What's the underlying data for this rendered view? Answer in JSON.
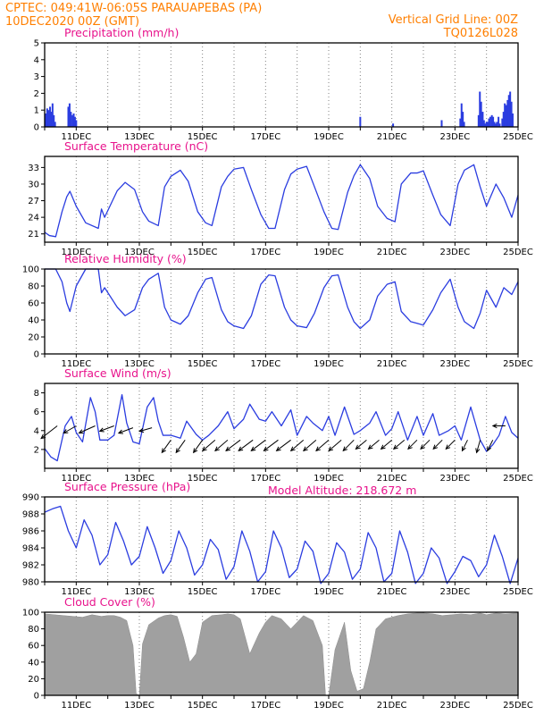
{
  "header": {
    "line1_left": "CPTEC:   049:41W-06:05S   PARAUAPEBAS (PA)",
    "line2_left": "10DEC2020 00Z (GMT)",
    "line1_right": "Vertical Grid Line: 00Z",
    "line2_right": "TQ0126L028"
  },
  "colors": {
    "header": "#ff7f00",
    "panel_title": "#e8138c",
    "series": "#2b3de0",
    "cloud": "#a0a0a0",
    "arrow": "#000000"
  },
  "model_altitude": "Model Altitude: 218.672 m",
  "chart_data": [
    {
      "id": "precipitation",
      "type": "bar",
      "title": "Precipitation (mm/h)",
      "xlabel": "",
      "ylabel": "",
      "ylim": [
        0,
        5
      ],
      "yticks": [
        "0",
        "1",
        "2",
        "3",
        "4",
        "5"
      ],
      "xlim": [
        0,
        15
      ],
      "xticks": [
        "11DEC",
        "13DEC",
        "15DEC",
        "17DEC",
        "19DEC",
        "21DEC",
        "23DEC",
        "25DEC"
      ],
      "xtick_days": [
        1,
        3,
        5,
        7,
        9,
        11,
        13,
        15
      ],
      "grid": "vertical dotted at 00Z",
      "x": [
        0.04,
        0.08,
        0.12,
        0.17,
        0.21,
        0.25,
        0.29,
        0.33,
        0.75,
        0.79,
        0.83,
        0.88,
        0.92,
        0.96,
        1.0,
        10.0,
        11.04,
        12.58,
        13.17,
        13.21,
        13.25,
        13.29,
        13.75,
        13.79,
        13.83,
        13.88,
        13.92,
        13.96,
        14.0,
        14.04,
        14.08,
        14.12,
        14.17,
        14.21,
        14.25,
        14.29,
        14.33,
        14.38,
        14.42,
        14.5,
        14.54,
        14.58,
        14.62,
        14.67,
        14.71,
        14.75,
        14.79,
        14.83
      ],
      "values": [
        0.8,
        1.1,
        1.0,
        1.2,
        0.9,
        1.4,
        0.7,
        0.3,
        1.2,
        1.4,
        0.9,
        0.7,
        0.8,
        0.6,
        0.4,
        0.6,
        0.2,
        0.4,
        0.5,
        1.4,
        0.9,
        0.3,
        0.7,
        2.1,
        1.5,
        0.9,
        0.4,
        0.2,
        0.3,
        0.3,
        0.5,
        0.6,
        0.7,
        0.6,
        0.3,
        0.2,
        0.3,
        0.6,
        0.2,
        0.5,
        0.9,
        1.4,
        1.3,
        1.6,
        1.9,
        2.1,
        1.5,
        0.8
      ]
    },
    {
      "id": "surface_temperature",
      "type": "line",
      "title": "Surface Temperature (nC)",
      "xlabel": "",
      "ylabel": "",
      "ylim": [
        19.5,
        35
      ],
      "yticks": [
        "21",
        "24",
        "27",
        "30",
        "33"
      ],
      "ytick_values": [
        21,
        24,
        27,
        30,
        33
      ],
      "xlim": [
        0,
        15
      ],
      "xticks": [
        "11DEC",
        "13DEC",
        "15DEC",
        "17DEC",
        "19DEC",
        "21DEC",
        "23DEC",
        "25DEC"
      ],
      "xtick_days": [
        1,
        3,
        5,
        7,
        9,
        11,
        13,
        15
      ],
      "grid": "vertical dotted at 00Z",
      "x": [
        0,
        0.15,
        0.35,
        0.55,
        0.7,
        0.8,
        1.0,
        1.3,
        1.7,
        1.8,
        1.9,
        2.3,
        2.55,
        2.85,
        3.1,
        3.3,
        3.6,
        3.8,
        4.0,
        4.3,
        4.55,
        4.85,
        5.1,
        5.3,
        5.6,
        5.8,
        6.0,
        6.3,
        6.55,
        6.85,
        7.1,
        7.3,
        7.6,
        7.8,
        8.0,
        8.3,
        8.55,
        8.85,
        9.1,
        9.3,
        9.6,
        9.8,
        10.0,
        10.3,
        10.55,
        10.85,
        11.1,
        11.3,
        11.6,
        11.8,
        12.0,
        12.3,
        12.55,
        12.85,
        13.1,
        13.3,
        13.6,
        13.8,
        14.0,
        14.3,
        14.55,
        14.8,
        15.0
      ],
      "values": [
        21.3,
        20.7,
        20.5,
        25.0,
        27.7,
        28.7,
        26.0,
        23.0,
        22.0,
        25.5,
        24.0,
        28.8,
        30.3,
        29.0,
        25.0,
        23.3,
        22.5,
        29.5,
        31.4,
        32.5,
        30.5,
        25.0,
        23.0,
        22.5,
        29.5,
        31.4,
        32.7,
        33.0,
        29.0,
        24.5,
        22.0,
        22.0,
        29.0,
        31.8,
        32.7,
        33.2,
        29.5,
        25.0,
        22.0,
        21.8,
        28.5,
        31.5,
        33.5,
        31.0,
        26.0,
        23.8,
        23.2,
        30.0,
        32.0,
        32.0,
        32.4,
        28.0,
        24.5,
        22.5,
        30.0,
        32.5,
        33.5,
        29.5,
        26.0,
        30.0,
        27.5,
        24.0,
        28.0
      ]
    },
    {
      "id": "relative_humidity",
      "type": "line",
      "title": "Relative Humidity (%)",
      "xlabel": "",
      "ylabel": "",
      "ylim": [
        0,
        100
      ],
      "yticks": [
        "0",
        "20",
        "40",
        "60",
        "80",
        "100"
      ],
      "ytick_values": [
        0,
        20,
        40,
        60,
        80,
        100
      ],
      "xlim": [
        0,
        15
      ],
      "xticks": [
        "11DEC",
        "13DEC",
        "15DEC",
        "17DEC",
        "19DEC",
        "21DEC",
        "23DEC",
        "25DEC"
      ],
      "xtick_days": [
        1,
        3,
        5,
        7,
        9,
        11,
        13,
        15
      ],
      "grid": "vertical dotted at 00Z",
      "x": [
        0,
        0.35,
        0.55,
        0.7,
        0.8,
        1.0,
        1.3,
        1.7,
        1.8,
        1.9,
        2.3,
        2.55,
        2.85,
        3.1,
        3.3,
        3.6,
        3.8,
        4.0,
        4.3,
        4.55,
        4.85,
        5.1,
        5.3,
        5.6,
        5.8,
        6.0,
        6.3,
        6.55,
        6.85,
        7.1,
        7.3,
        7.6,
        7.8,
        8.0,
        8.3,
        8.55,
        8.85,
        9.1,
        9.3,
        9.6,
        9.8,
        10.0,
        10.3,
        10.55,
        10.85,
        11.1,
        11.3,
        11.6,
        11.8,
        12.0,
        12.3,
        12.55,
        12.85,
        13.1,
        13.3,
        13.6,
        13.8,
        14.0,
        14.3,
        14.55,
        14.8,
        15.0
      ],
      "values": [
        100,
        100,
        85,
        60,
        50,
        80,
        100,
        100,
        72,
        78,
        55,
        45,
        52,
        78,
        88,
        95,
        55,
        40,
        35,
        45,
        72,
        88,
        90,
        52,
        38,
        33,
        30,
        45,
        82,
        93,
        92,
        55,
        40,
        33,
        31,
        48,
        78,
        92,
        93,
        55,
        38,
        30,
        40,
        68,
        82,
        85,
        50,
        38,
        36,
        34,
        52,
        72,
        88,
        55,
        38,
        30,
        48,
        75,
        55,
        78,
        70,
        85
      ]
    },
    {
      "id": "surface_wind",
      "type": "line",
      "title": "Surface Wind (m/s)",
      "xlabel": "",
      "ylabel": "",
      "ylim": [
        0,
        9
      ],
      "yticks": [
        "2",
        "4",
        "6",
        "8"
      ],
      "ytick_values": [
        2,
        4,
        6,
        8
      ],
      "xlim": [
        0,
        15
      ],
      "xticks": [
        "11DEC",
        "13DEC",
        "15DEC",
        "17DEC",
        "19DEC",
        "21DEC",
        "23DEC",
        "25DEC"
      ],
      "xtick_days": [
        1,
        3,
        5,
        7,
        9,
        11,
        13,
        15
      ],
      "grid": "vertical dotted at 00Z",
      "x": [
        0,
        0.2,
        0.4,
        0.65,
        0.85,
        1.0,
        1.2,
        1.45,
        1.6,
        1.75,
        2.0,
        2.2,
        2.45,
        2.6,
        2.8,
        3.0,
        3.25,
        3.45,
        3.6,
        3.75,
        4.0,
        4.3,
        4.5,
        4.8,
        5.0,
        5.2,
        5.5,
        5.8,
        6.0,
        6.3,
        6.5,
        6.8,
        7.0,
        7.2,
        7.5,
        7.8,
        8.0,
        8.3,
        8.5,
        8.8,
        9.0,
        9.2,
        9.5,
        9.8,
        10.0,
        10.3,
        10.5,
        10.8,
        11.0,
        11.2,
        11.5,
        11.8,
        12.0,
        12.3,
        12.5,
        12.8,
        13.0,
        13.2,
        13.5,
        13.8,
        14.0,
        14.2,
        14.4,
        14.6,
        14.8,
        15.0
      ],
      "values": [
        2.1,
        1.2,
        0.8,
        4.5,
        5.5,
        3.8,
        2.8,
        7.5,
        6.0,
        3.0,
        3.0,
        3.5,
        7.8,
        4.8,
        2.8,
        2.6,
        6.5,
        7.5,
        5.0,
        3.5,
        3.5,
        3.2,
        5.0,
        3.6,
        3.0,
        3.5,
        4.5,
        6.0,
        4.2,
        5.2,
        6.8,
        5.2,
        5.0,
        6.0,
        4.5,
        6.2,
        3.5,
        5.5,
        4.8,
        4.0,
        5.5,
        3.5,
        6.5,
        3.6,
        4.0,
        4.8,
        6.0,
        3.5,
        4.2,
        6.0,
        3.0,
        5.5,
        3.5,
        5.8,
        3.5,
        4.0,
        4.5,
        3.0,
        6.5,
        3.0,
        1.8,
        2.5,
        3.5,
        5.5,
        3.8,
        3.2
      ],
      "wind_arrows": {
        "x": [
          0.4,
          1.0,
          1.6,
          2.2,
          2.8,
          3.4,
          4.0,
          4.45,
          5.0,
          5.4,
          5.8,
          6.2,
          6.6,
          7.0,
          7.4,
          7.8,
          8.2,
          8.6,
          9.0,
          9.4,
          9.8,
          10.2,
          10.6,
          11.0,
          11.4,
          11.8,
          12.2,
          12.6,
          13.0,
          13.4,
          13.8,
          14.2,
          14.6
        ],
        "y": [
          4.5,
          4.5,
          4.5,
          4.5,
          4.3,
          4.3,
          3.0,
          3.0,
          3.0,
          3.0,
          3.0,
          3.0,
          3.0,
          3.0,
          3.0,
          3.0,
          3.0,
          3.0,
          3.0,
          3.0,
          3.0,
          3.0,
          3.0,
          3.0,
          3.0,
          3.0,
          3.0,
          3.0,
          3.0,
          3.0,
          3.0,
          3.0,
          4.5
        ],
        "dx": [
          -18,
          -14,
          -18,
          -16,
          -16,
          -14,
          -10,
          -10,
          -10,
          -14,
          -14,
          -16,
          -16,
          -16,
          -16,
          -16,
          -14,
          -14,
          -14,
          -14,
          -12,
          -12,
          -12,
          -12,
          -12,
          -10,
          -10,
          -10,
          -10,
          -6,
          -4,
          -6,
          -14
        ],
        "dy": [
          14,
          8,
          8,
          6,
          6,
          4,
          14,
          14,
          14,
          12,
          12,
          12,
          12,
          12,
          12,
          12,
          12,
          12,
          12,
          12,
          12,
          10,
          10,
          10,
          10,
          10,
          10,
          10,
          10,
          12,
          14,
          12,
          0
        ]
      }
    },
    {
      "id": "surface_pressure",
      "type": "line",
      "title": "Surface Pressure (hPa)",
      "xlabel": "",
      "ylabel": "",
      "ylim": [
        980,
        990
      ],
      "yticks": [
        "980",
        "982",
        "984",
        "986",
        "988",
        "990"
      ],
      "ytick_values": [
        980,
        982,
        984,
        986,
        988,
        990
      ],
      "xlim": [
        0,
        15
      ],
      "xticks": [
        "11DEC",
        "13DEC",
        "15DEC",
        "17DEC",
        "19DEC",
        "21DEC",
        "23DEC",
        "25DEC"
      ],
      "xtick_days": [
        1,
        3,
        5,
        7,
        9,
        11,
        13,
        15
      ],
      "grid": "vertical dotted at 00Z",
      "x": [
        0,
        0.25,
        0.5,
        0.75,
        1.0,
        1.25,
        1.5,
        1.75,
        2.0,
        2.25,
        2.5,
        2.75,
        3.0,
        3.25,
        3.5,
        3.75,
        4.0,
        4.25,
        4.5,
        4.75,
        5.0,
        5.25,
        5.5,
        5.75,
        6.0,
        6.25,
        6.5,
        6.75,
        7.0,
        7.25,
        7.5,
        7.75,
        8.0,
        8.25,
        8.5,
        8.75,
        9.0,
        9.25,
        9.5,
        9.75,
        10.0,
        10.25,
        10.5,
        10.75,
        11.0,
        11.25,
        11.5,
        11.75,
        12.0,
        12.25,
        12.5,
        12.75,
        13.0,
        13.25,
        13.5,
        13.75,
        14.0,
        14.25,
        14.5,
        14.75,
        15.0
      ],
      "values": [
        988.2,
        988.6,
        988.9,
        986.0,
        984.0,
        987.3,
        985.5,
        982.0,
        983.2,
        987.0,
        984.8,
        982.0,
        983.0,
        986.5,
        984.0,
        981.0,
        982.5,
        986.0,
        984.0,
        980.8,
        982.0,
        985.0,
        983.8,
        980.3,
        981.8,
        986.0,
        983.6,
        980.0,
        981.2,
        986.0,
        984.0,
        980.5,
        981.5,
        984.8,
        983.6,
        979.8,
        981.0,
        984.6,
        983.5,
        980.3,
        981.5,
        985.8,
        984.0,
        980.0,
        981.0,
        986.0,
        983.5,
        979.8,
        981.0,
        984.0,
        982.8,
        979.8,
        981.2,
        983.0,
        982.5,
        980.6,
        982.0,
        985.5,
        983.0,
        979.8,
        982.8
      ]
    },
    {
      "id": "cloud_cover",
      "type": "area",
      "title": "Cloud Cover (%)",
      "xlabel": "",
      "ylabel": "",
      "ylim": [
        0,
        100
      ],
      "yticks": [
        "0",
        "20",
        "40",
        "60",
        "80",
        "100"
      ],
      "ytick_values": [
        0,
        20,
        40,
        60,
        80,
        100
      ],
      "xlim": [
        0,
        15
      ],
      "xticks": [
        "11DEC",
        "13DEC",
        "15DEC",
        "17DEC",
        "19DEC",
        "21DEC",
        "23DEC",
        "25DEC"
      ],
      "xtick_days": [
        1,
        3,
        5,
        7,
        9,
        11,
        13,
        15
      ],
      "grid": "vertical dotted at 00Z",
      "x": [
        0,
        0.3,
        0.6,
        0.9,
        1.2,
        1.5,
        1.8,
        2.0,
        2.2,
        2.4,
        2.6,
        2.8,
        2.9,
        3.0,
        3.1,
        3.3,
        3.6,
        3.8,
        4.0,
        4.2,
        4.4,
        4.6,
        4.8,
        5.0,
        5.3,
        5.6,
        5.8,
        6.0,
        6.2,
        6.5,
        6.8,
        7.0,
        7.2,
        7.5,
        7.8,
        8.0,
        8.2,
        8.5,
        8.8,
        8.9,
        9.0,
        9.2,
        9.5,
        9.7,
        9.9,
        10.1,
        10.3,
        10.5,
        10.8,
        11.0,
        11.2,
        11.5,
        11.8,
        12.0,
        12.3,
        12.6,
        12.9,
        13.2,
        13.5,
        13.8,
        14.0,
        14.3,
        14.6,
        15.0
      ],
      "values": [
        98,
        97,
        96,
        95,
        94,
        97,
        95,
        96,
        96,
        94,
        90,
        60,
        2,
        0,
        62,
        85,
        93,
        96,
        97,
        95,
        70,
        40,
        50,
        88,
        96,
        97,
        98,
        97,
        92,
        50,
        75,
        88,
        96,
        92,
        80,
        88,
        96,
        90,
        60,
        0,
        0,
        55,
        88,
        30,
        5,
        8,
        40,
        80,
        92,
        94,
        96,
        98,
        99,
        99,
        98,
        96,
        97,
        98,
        97,
        99,
        97,
        99,
        98,
        99
      ]
    }
  ]
}
